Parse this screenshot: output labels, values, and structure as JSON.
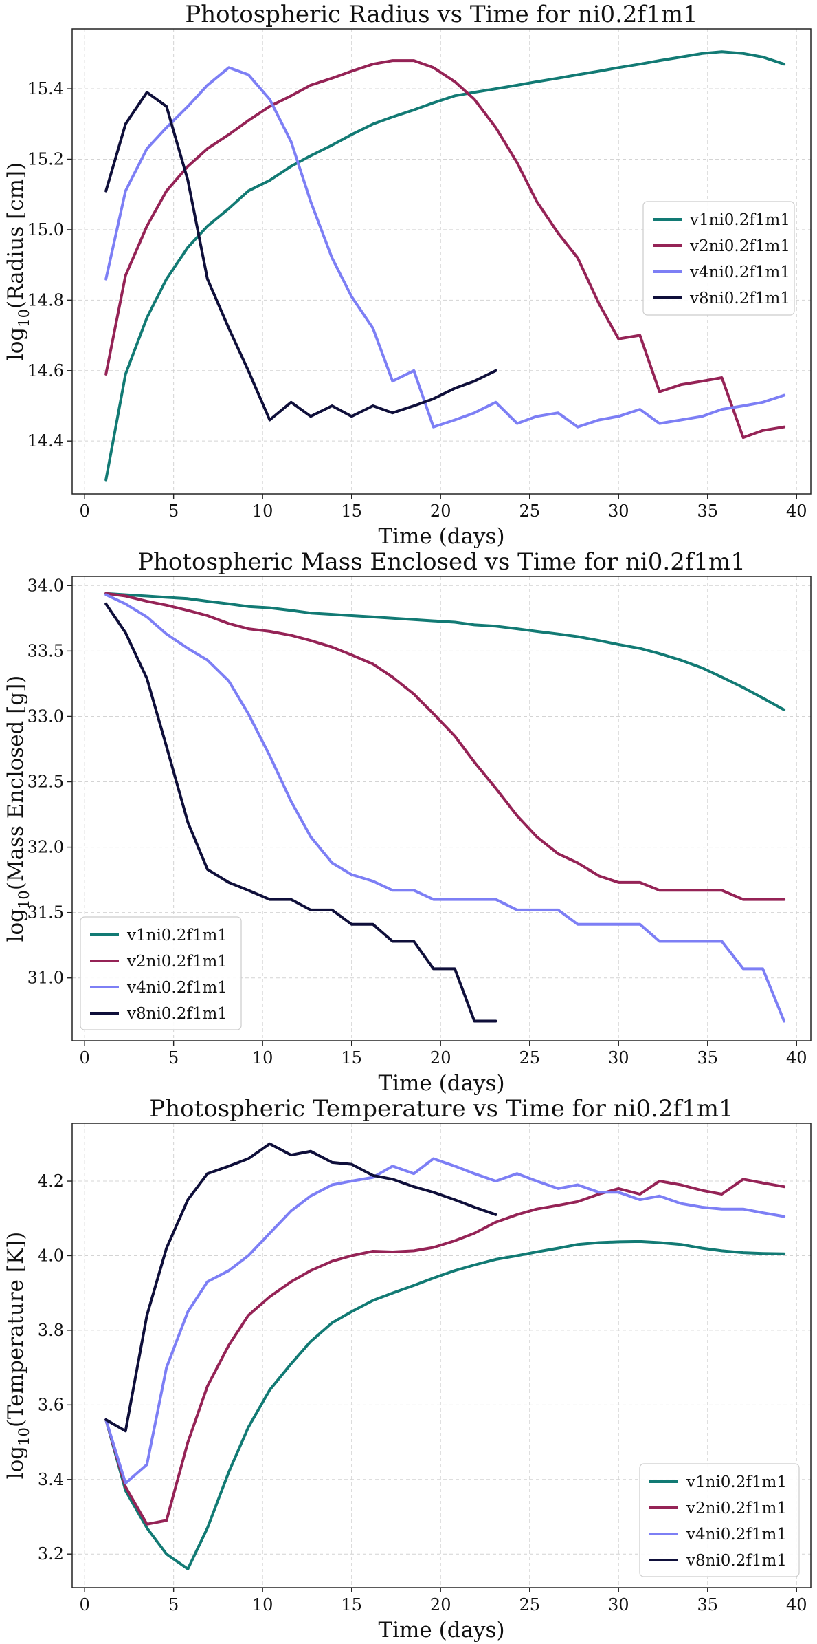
{
  "chart_data": [
    {
      "type": "line",
      "title": "Photospheric Radius vs Time for ni0.2f1m1",
      "xlabel": "Time (days)",
      "ylabel": {
        "prefix": "log",
        "sub": "10",
        "rest": "(Radius [cm])"
      },
      "xlim": [
        -0.7,
        40.8
      ],
      "ylim": [
        14.25,
        15.57
      ],
      "xticks": [
        0,
        5,
        10,
        15,
        20,
        25,
        30,
        35,
        40
      ],
      "yticks": [
        14.4,
        14.6,
        14.8,
        15.0,
        15.2,
        15.4
      ],
      "ytick_labels": [
        "14.4",
        "14.6",
        "14.8",
        "15.0",
        "15.2",
        "15.4"
      ],
      "grid": true,
      "legend_loc": "center-right",
      "series": [
        {
          "name": "v1ni0.2f1m1",
          "color": "#127a74",
          "x": [
            1.2,
            2.3,
            3.5,
            4.6,
            5.8,
            6.9,
            8.1,
            9.2,
            10.4,
            11.6,
            12.7,
            13.9,
            15.0,
            16.2,
            17.3,
            18.5,
            19.6,
            20.8,
            21.9,
            23.1,
            24.3,
            25.4,
            26.6,
            27.7,
            28.9,
            30.0,
            31.2,
            32.3,
            33.5,
            34.7,
            35.8,
            37.0,
            38.1,
            39.3
          ],
          "y": [
            14.29,
            14.59,
            14.75,
            14.86,
            14.95,
            15.01,
            15.06,
            15.11,
            15.14,
            15.18,
            15.21,
            15.24,
            15.27,
            15.3,
            15.32,
            15.34,
            15.36,
            15.38,
            15.39,
            15.4,
            15.41,
            15.42,
            15.43,
            15.44,
            15.45,
            15.46,
            15.47,
            15.48,
            15.49,
            15.5,
            15.505,
            15.5,
            15.49,
            15.47
          ]
        },
        {
          "name": "v2ni0.2f1m1",
          "color": "#952356",
          "x": [
            1.2,
            2.3,
            3.5,
            4.6,
            5.8,
            6.9,
            8.1,
            9.2,
            10.4,
            11.6,
            12.7,
            13.9,
            15.0,
            16.2,
            17.3,
            18.5,
            19.6,
            20.8,
            21.9,
            23.1,
            24.3,
            25.4,
            26.6,
            27.7,
            28.9,
            30.0,
            31.2,
            32.3,
            33.5,
            34.7,
            35.8,
            37.0,
            38.1,
            39.3
          ],
          "y": [
            14.59,
            14.87,
            15.01,
            15.11,
            15.18,
            15.23,
            15.27,
            15.31,
            15.35,
            15.38,
            15.41,
            15.43,
            15.45,
            15.47,
            15.48,
            15.48,
            15.46,
            15.42,
            15.37,
            15.29,
            15.19,
            15.08,
            14.99,
            14.92,
            14.79,
            14.69,
            14.7,
            14.54,
            14.56,
            14.57,
            14.58,
            14.41,
            14.43,
            14.44
          ]
        },
        {
          "name": "v4ni0.2f1m1",
          "color": "#7d7ff5",
          "x": [
            1.2,
            2.3,
            3.5,
            4.6,
            5.8,
            6.9,
            8.1,
            9.2,
            10.4,
            11.6,
            12.7,
            13.9,
            15.0,
            16.2,
            17.3,
            18.5,
            19.6,
            20.8,
            21.9,
            23.1,
            24.3,
            25.4,
            26.6,
            27.7,
            28.9,
            30.0,
            31.2,
            32.3,
            33.5,
            34.7,
            35.8,
            37.0,
            38.1,
            39.3
          ],
          "y": [
            14.86,
            15.11,
            15.23,
            15.29,
            15.35,
            15.41,
            15.46,
            15.44,
            15.37,
            15.25,
            15.08,
            14.92,
            14.81,
            14.72,
            14.57,
            14.6,
            14.44,
            14.46,
            14.48,
            14.51,
            14.45,
            14.47,
            14.48,
            14.44,
            14.46,
            14.47,
            14.49,
            14.45,
            14.46,
            14.47,
            14.49,
            14.5,
            14.51,
            14.53
          ]
        },
        {
          "name": "v8ni0.2f1m1",
          "color": "#0f0f3a",
          "x": [
            1.2,
            2.3,
            3.5,
            4.6,
            5.8,
            6.9,
            8.1,
            9.2,
            10.4,
            11.6,
            12.7,
            13.9,
            15.0,
            16.2,
            17.3,
            18.5,
            19.6,
            20.8,
            21.9,
            23.1
          ],
          "y": [
            15.11,
            15.3,
            15.39,
            15.35,
            15.14,
            14.86,
            14.72,
            14.6,
            14.46,
            14.51,
            14.47,
            14.5,
            14.47,
            14.5,
            14.48,
            14.5,
            14.52,
            14.55,
            14.57,
            14.6
          ]
        }
      ]
    },
    {
      "type": "line",
      "title": "Photospheric Mass Enclosed vs Time for ni0.2f1m1",
      "xlabel": "Time (days)",
      "ylabel": {
        "prefix": "log",
        "sub": "10",
        "rest": "(Mass Enclosed [g])"
      },
      "xlim": [
        -0.7,
        40.8
      ],
      "ylim": [
        30.52,
        34.07
      ],
      "xticks": [
        0,
        5,
        10,
        15,
        20,
        25,
        30,
        35,
        40
      ],
      "yticks": [
        31.0,
        31.5,
        32.0,
        32.5,
        33.0,
        33.5,
        34.0
      ],
      "ytick_labels": [
        "31.0",
        "31.5",
        "32.0",
        "32.5",
        "33.0",
        "33.5",
        "34.0"
      ],
      "grid": true,
      "legend_loc": "lower-left",
      "series": [
        {
          "name": "v1ni0.2f1m1",
          "color": "#127a74",
          "x": [
            1.2,
            2.3,
            3.5,
            4.6,
            5.8,
            6.9,
            8.1,
            9.2,
            10.4,
            11.6,
            12.7,
            13.9,
            15.0,
            16.2,
            17.3,
            18.5,
            19.6,
            20.8,
            21.9,
            23.1,
            24.3,
            25.4,
            26.6,
            27.7,
            28.9,
            30.0,
            31.2,
            32.3,
            33.5,
            34.7,
            35.8,
            37.0,
            38.1,
            39.3
          ],
          "y": [
            33.94,
            33.93,
            33.92,
            33.91,
            33.9,
            33.88,
            33.86,
            33.84,
            33.83,
            33.81,
            33.79,
            33.78,
            33.77,
            33.76,
            33.75,
            33.74,
            33.73,
            33.72,
            33.7,
            33.69,
            33.67,
            33.65,
            33.63,
            33.61,
            33.58,
            33.55,
            33.52,
            33.48,
            33.43,
            33.37,
            33.3,
            33.22,
            33.14,
            33.05
          ]
        },
        {
          "name": "v2ni0.2f1m1",
          "color": "#952356",
          "x": [
            1.2,
            2.3,
            3.5,
            4.6,
            5.8,
            6.9,
            8.1,
            9.2,
            10.4,
            11.6,
            12.7,
            13.9,
            15.0,
            16.2,
            17.3,
            18.5,
            19.6,
            20.8,
            21.9,
            23.1,
            24.3,
            25.4,
            26.6,
            27.7,
            28.9,
            30.0,
            31.2,
            32.3,
            33.5,
            34.7,
            35.8,
            37.0,
            38.1,
            39.3
          ],
          "y": [
            33.94,
            33.92,
            33.88,
            33.85,
            33.81,
            33.77,
            33.71,
            33.67,
            33.65,
            33.62,
            33.58,
            33.53,
            33.47,
            33.4,
            33.3,
            33.17,
            33.02,
            32.85,
            32.65,
            32.45,
            32.24,
            32.08,
            31.95,
            31.88,
            31.78,
            31.73,
            31.73,
            31.67,
            31.67,
            31.67,
            31.67,
            31.6,
            31.6,
            31.6
          ]
        },
        {
          "name": "v4ni0.2f1m1",
          "color": "#7d7ff5",
          "x": [
            1.2,
            2.3,
            3.5,
            4.6,
            5.8,
            6.9,
            8.1,
            9.2,
            10.4,
            11.6,
            12.7,
            13.9,
            15.0,
            16.2,
            17.3,
            18.5,
            19.6,
            20.8,
            21.9,
            23.1,
            24.3,
            25.4,
            26.6,
            27.7,
            28.9,
            30.0,
            31.2,
            32.3,
            33.5,
            34.7,
            35.8,
            37.0,
            38.1,
            39.3
          ],
          "y": [
            33.93,
            33.86,
            33.76,
            33.63,
            33.52,
            33.43,
            33.27,
            33.02,
            32.7,
            32.35,
            32.08,
            31.88,
            31.79,
            31.74,
            31.67,
            31.67,
            31.6,
            31.6,
            31.6,
            31.6,
            31.52,
            31.52,
            31.52,
            31.41,
            31.41,
            31.41,
            31.41,
            31.28,
            31.28,
            31.28,
            31.28,
            31.07,
            31.07,
            30.67
          ]
        },
        {
          "name": "v8ni0.2f1m1",
          "color": "#0f0f3a",
          "x": [
            1.2,
            2.3,
            3.5,
            4.6,
            5.8,
            6.9,
            8.1,
            9.2,
            10.4,
            11.6,
            12.7,
            13.9,
            15.0,
            16.2,
            17.3,
            18.5,
            19.6,
            20.8,
            21.9,
            23.1
          ],
          "y": [
            33.86,
            33.64,
            33.29,
            32.77,
            32.19,
            31.83,
            31.73,
            31.67,
            31.6,
            31.6,
            31.52,
            31.52,
            31.41,
            31.41,
            31.28,
            31.28,
            31.07,
            31.07,
            30.67,
            30.67
          ]
        }
      ]
    },
    {
      "type": "line",
      "title": "Photospheric Temperature vs Time for ni0.2f1m1",
      "xlabel": "Time (days)",
      "ylabel": {
        "prefix": "log",
        "sub": "10",
        "rest": "(Temperature [K])"
      },
      "xlim": [
        -0.7,
        40.8
      ],
      "ylim": [
        3.11,
        4.355
      ],
      "xticks": [
        0,
        5,
        10,
        15,
        20,
        25,
        30,
        35,
        40
      ],
      "yticks": [
        3.2,
        3.4,
        3.6,
        3.8,
        4.0,
        4.2
      ],
      "ytick_labels": [
        "3.2",
        "3.4",
        "3.6",
        "3.8",
        "4.0",
        "4.2"
      ],
      "grid": true,
      "legend_loc": "lower-right",
      "series": [
        {
          "name": "v1ni0.2f1m1",
          "color": "#127a74",
          "x": [
            1.2,
            2.3,
            3.5,
            4.6,
            5.8,
            6.9,
            8.1,
            9.2,
            10.4,
            11.6,
            12.7,
            13.9,
            15.0,
            16.2,
            17.3,
            18.5,
            19.6,
            20.8,
            21.9,
            23.1,
            24.3,
            25.4,
            26.6,
            27.7,
            28.9,
            30.0,
            31.2,
            32.3,
            33.5,
            34.7,
            35.8,
            37.0,
            38.1,
            39.3
          ],
          "y": [
            3.56,
            3.37,
            3.27,
            3.2,
            3.16,
            3.27,
            3.42,
            3.54,
            3.64,
            3.71,
            3.77,
            3.82,
            3.85,
            3.88,
            3.9,
            3.92,
            3.94,
            3.96,
            3.975,
            3.99,
            4.0,
            4.01,
            4.02,
            4.03,
            4.035,
            4.037,
            4.038,
            4.035,
            4.03,
            4.02,
            4.013,
            4.008,
            4.006,
            4.005
          ]
        },
        {
          "name": "v2ni0.2f1m1",
          "color": "#952356",
          "x": [
            1.2,
            2.3,
            3.5,
            4.6,
            5.8,
            6.9,
            8.1,
            9.2,
            10.4,
            11.6,
            12.7,
            13.9,
            15.0,
            16.2,
            17.3,
            18.5,
            19.6,
            20.8,
            21.9,
            23.1,
            24.3,
            25.4,
            26.6,
            27.7,
            28.9,
            30.0,
            31.2,
            32.3,
            33.5,
            34.7,
            35.8,
            37.0,
            38.1,
            39.3
          ],
          "y": [
            3.56,
            3.38,
            3.28,
            3.29,
            3.5,
            3.65,
            3.76,
            3.84,
            3.89,
            3.93,
            3.96,
            3.985,
            4.0,
            4.012,
            4.01,
            4.013,
            4.022,
            4.04,
            4.06,
            4.09,
            4.11,
            4.125,
            4.135,
            4.145,
            4.165,
            4.18,
            4.165,
            4.2,
            4.19,
            4.175,
            4.165,
            4.205,
            4.195,
            4.185
          ]
        },
        {
          "name": "v4ni0.2f1m1",
          "color": "#7d7ff5",
          "x": [
            1.2,
            2.3,
            3.5,
            4.6,
            5.8,
            6.9,
            8.1,
            9.2,
            10.4,
            11.6,
            12.7,
            13.9,
            15.0,
            16.2,
            17.3,
            18.5,
            19.6,
            20.8,
            21.9,
            23.1,
            24.3,
            25.4,
            26.6,
            27.7,
            28.9,
            30.0,
            31.2,
            32.3,
            33.5,
            34.7,
            35.8,
            37.0,
            38.1,
            39.3
          ],
          "y": [
            3.56,
            3.39,
            3.44,
            3.7,
            3.85,
            3.93,
            3.96,
            4.0,
            4.06,
            4.12,
            4.16,
            4.19,
            4.2,
            4.21,
            4.24,
            4.22,
            4.26,
            4.24,
            4.22,
            4.2,
            4.22,
            4.2,
            4.18,
            4.19,
            4.17,
            4.17,
            4.15,
            4.16,
            4.14,
            4.13,
            4.125,
            4.125,
            4.115,
            4.105
          ]
        },
        {
          "name": "v8ni0.2f1m1",
          "color": "#0f0f3a",
          "x": [
            1.2,
            2.3,
            3.5,
            4.6,
            5.8,
            6.9,
            8.1,
            9.2,
            10.4,
            11.6,
            12.7,
            13.9,
            15.0,
            16.2,
            17.3,
            18.5,
            19.6,
            20.8,
            21.9,
            23.1
          ],
          "y": [
            3.56,
            3.53,
            3.84,
            4.02,
            4.15,
            4.22,
            4.24,
            4.26,
            4.3,
            4.27,
            4.28,
            4.25,
            4.245,
            4.215,
            4.205,
            4.185,
            4.17,
            4.15,
            4.13,
            4.11
          ]
        }
      ]
    }
  ]
}
